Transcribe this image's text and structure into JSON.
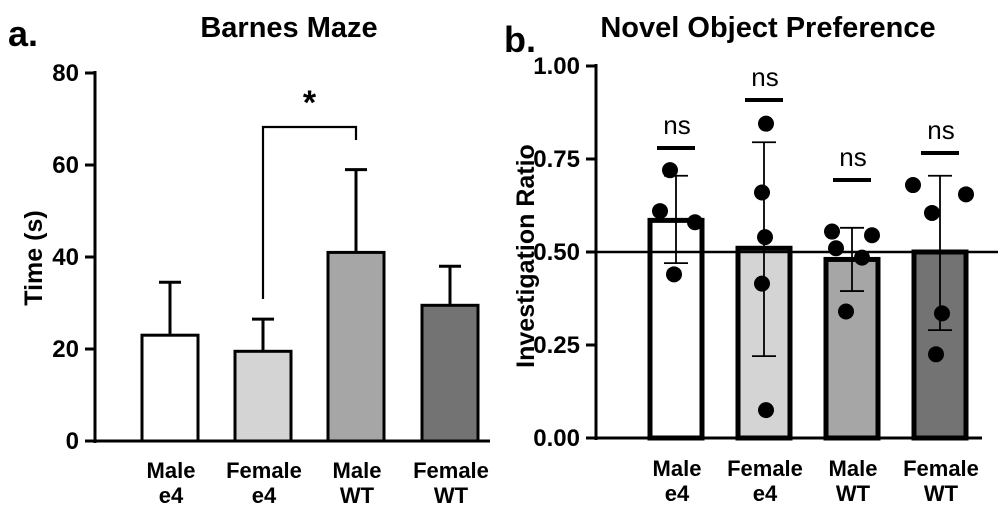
{
  "panels": [
    {
      "letter": "a.",
      "title": "Barnes Maze",
      "ylabel": "Time (s)"
    },
    {
      "letter": "b.",
      "title": "Novel Object Preference",
      "ylabel": "Investigation Ratio"
    }
  ],
  "chart_data": [
    {
      "type": "bar",
      "title": "Barnes Maze",
      "xlabel": "",
      "ylabel": "Time (s)",
      "ylim": [
        0,
        80
      ],
      "yticks": [
        "0",
        "20",
        "40",
        "60",
        "80"
      ],
      "categories": [
        [
          "Male",
          "e4"
        ],
        [
          "Female",
          "e4"
        ],
        [
          "Male",
          "WT"
        ],
        [
          "Female",
          "WT"
        ]
      ],
      "values": [
        23,
        19.5,
        41,
        29.5
      ],
      "error_upper": [
        34.5,
        26.5,
        59,
        38
      ],
      "bar_colors": [
        "#ffffff",
        "#d4d4d4",
        "#a6a6a6",
        "#737373"
      ],
      "grid": false,
      "significance": [
        {
          "between": [
            1,
            2
          ],
          "label": "*"
        }
      ]
    },
    {
      "type": "bar",
      "title": "Novel Object Preference",
      "xlabel": "",
      "ylabel": "Investigation Ratio",
      "ylim": [
        0,
        1
      ],
      "yticks": [
        "0.00",
        "0.25",
        "0.50",
        "0.75",
        "1.00"
      ],
      "categories": [
        [
          "Male",
          "e4"
        ],
        [
          "Female",
          "e4"
        ],
        [
          "Male",
          "WT"
        ],
        [
          "Female",
          "WT"
        ]
      ],
      "values": [
        0.585,
        0.51,
        0.48,
        0.5
      ],
      "error_low": [
        0.47,
        0.22,
        0.395,
        0.29
      ],
      "error_high": [
        0.705,
        0.795,
        0.565,
        0.705
      ],
      "points": [
        [
          0.72,
          0.61,
          0.58,
          0.44
        ],
        [
          0.845,
          0.66,
          0.54,
          0.415,
          0.075
        ],
        [
          0.555,
          0.545,
          0.51,
          0.485,
          0.34
        ],
        [
          0.68,
          0.655,
          0.605,
          0.335,
          0.225
        ]
      ],
      "significance_labels": [
        "ns",
        "ns",
        "ns",
        "ns"
      ],
      "reference_line": 0.5,
      "bar_colors": [
        "#ffffff",
        "#d4d4d4",
        "#a6a6a6",
        "#737373"
      ],
      "grid": false
    }
  ]
}
